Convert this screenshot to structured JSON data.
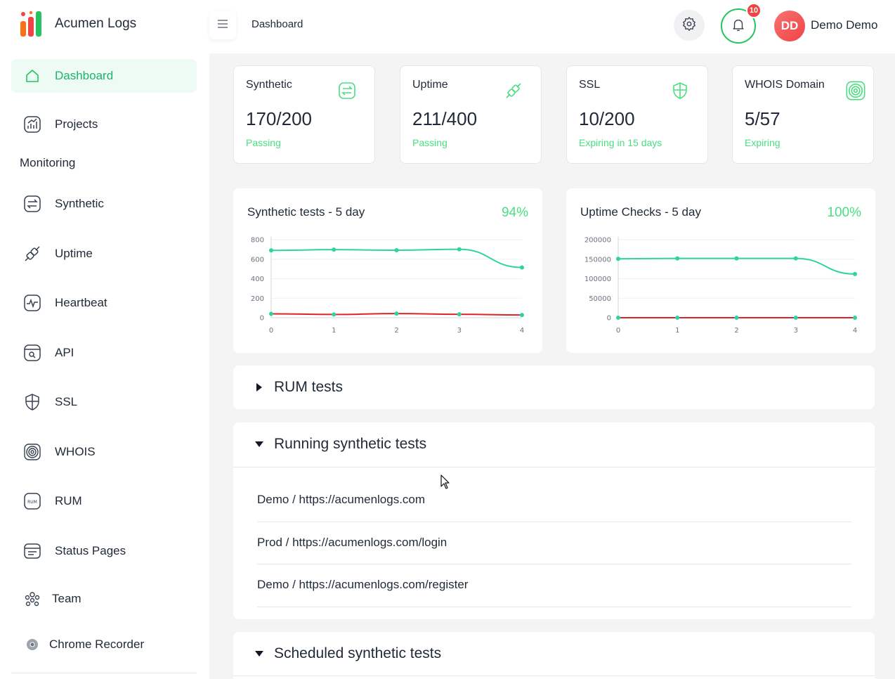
{
  "brand": {
    "name": "Acumen Logs"
  },
  "sidebar": {
    "section_monitoring": "Monitoring",
    "items": [
      {
        "label": "Dashboard",
        "icon": "home-icon",
        "active": true
      },
      {
        "label": "Projects",
        "icon": "chart-icon"
      },
      {
        "label": "Synthetic",
        "icon": "exchange-icon"
      },
      {
        "label": "Uptime",
        "icon": "plug-icon"
      },
      {
        "label": "Heartbeat",
        "icon": "pulse-icon"
      },
      {
        "label": "API",
        "icon": "api-icon"
      },
      {
        "label": "SSL",
        "icon": "shield-icon"
      },
      {
        "label": "WHOIS",
        "icon": "radar-icon"
      },
      {
        "label": "RUM",
        "icon": "rum-icon"
      },
      {
        "label": "Status Pages",
        "icon": "browser-icon"
      },
      {
        "label": "Team",
        "icon": "team-icon"
      },
      {
        "label": "Chrome Recorder",
        "icon": "chrome-icon"
      }
    ]
  },
  "header": {
    "breadcrumb": "Dashboard",
    "notifications_count": "10",
    "avatar_initials": "DD",
    "user_name": "Demo Demo"
  },
  "stats": [
    {
      "label": "Synthetic",
      "value": "170/200",
      "sub": "Passing",
      "icon": "exchange-icon"
    },
    {
      "label": "Uptime",
      "value": "211/400",
      "sub": "Passing",
      "icon": "plug-icon"
    },
    {
      "label": "SSL",
      "value": "10/200",
      "sub": "Expiring in 15 days",
      "icon": "shield-icon"
    },
    {
      "label": "WHOIS Domain",
      "value": "5/57",
      "sub": "Expiring",
      "icon": "radar-icon"
    }
  ],
  "colors": {
    "accent": "#22c55e",
    "pass_line": "#2ed3a0",
    "fail_line": "#dc2626",
    "sub_text": "#4ade80"
  },
  "chart_data": [
    {
      "type": "line",
      "title": "Synthetic tests - 5 day",
      "percent": "94%",
      "x": [
        0,
        1,
        2,
        3,
        4
      ],
      "y_ticks": [
        0,
        200,
        400,
        600,
        800
      ],
      "ylim": [
        0,
        800
      ],
      "series": [
        {
          "values": [
            690,
            698,
            692,
            702,
            515
          ]
        },
        {
          "values": [
            40,
            33,
            42,
            35,
            28
          ]
        }
      ]
    },
    {
      "type": "line",
      "title": "Uptime Checks - 5 day",
      "percent": "100%",
      "x": [
        0,
        1,
        2,
        3,
        4
      ],
      "y_ticks": [
        0,
        50000,
        100000,
        150000,
        200000
      ],
      "ylim": [
        0,
        200000
      ],
      "series": [
        {
          "values": [
            151000,
            152000,
            152000,
            152000,
            112000
          ]
        },
        {
          "values": [
            0,
            0,
            0,
            0,
            0
          ]
        }
      ]
    }
  ],
  "accordions": {
    "rum": {
      "title": "RUM tests"
    },
    "running": {
      "title": "Running synthetic tests",
      "rows": [
        "Demo / https://acumenlogs.com",
        "Prod / https://acumenlogs.com/login",
        "Demo / https://acumenlogs.com/register"
      ]
    },
    "scheduled": {
      "title": "Scheduled synthetic tests"
    }
  }
}
